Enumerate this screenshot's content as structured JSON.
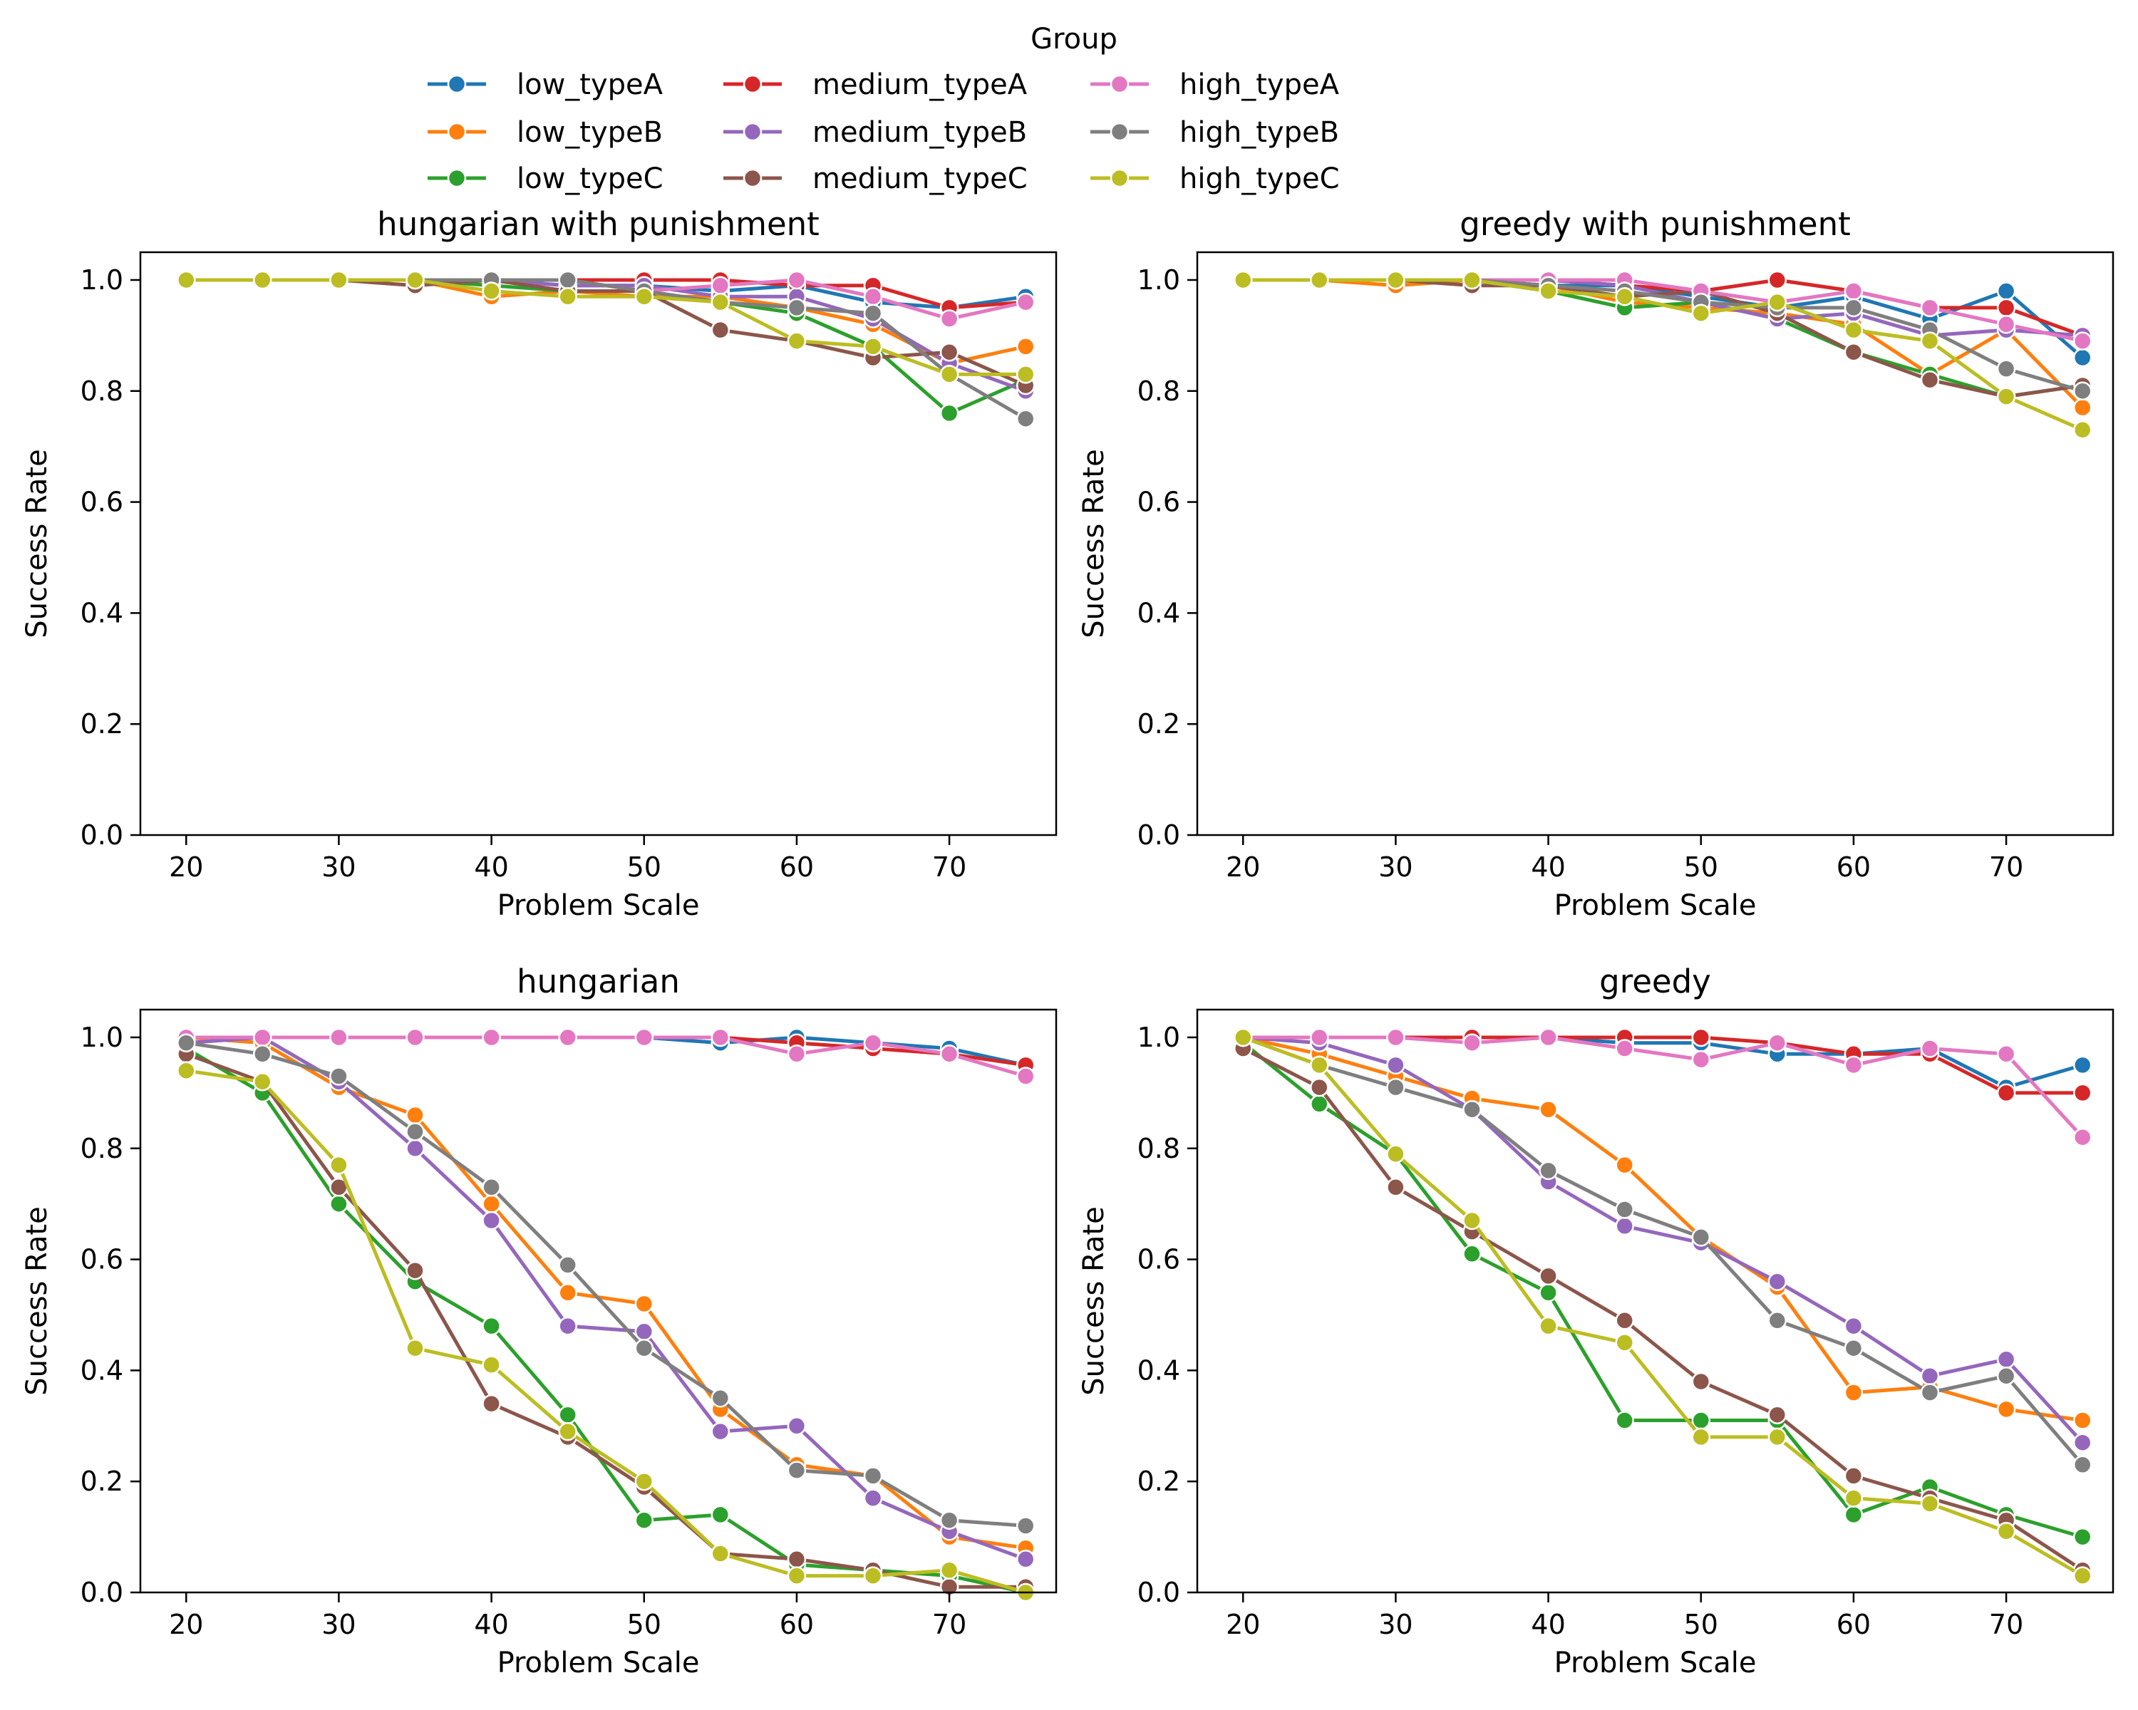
{
  "legend": {
    "title": "Group",
    "entries": [
      {
        "name": "low_typeA",
        "color": "#1f77b4"
      },
      {
        "name": "low_typeB",
        "color": "#ff7f0e"
      },
      {
        "name": "low_typeC",
        "color": "#2ca02c"
      },
      {
        "name": "medium_typeA",
        "color": "#d62728"
      },
      {
        "name": "medium_typeB",
        "color": "#9467bd"
      },
      {
        "name": "medium_typeC",
        "color": "#8c564b"
      },
      {
        "name": "high_typeA",
        "color": "#e377c2"
      },
      {
        "name": "high_typeB",
        "color": "#7f7f7f"
      },
      {
        "name": "high_typeC",
        "color": "#bcbd22"
      }
    ]
  },
  "chart_data": [
    {
      "type": "line",
      "title": "hungarian with punishment",
      "xlabel": "Problem Scale",
      "ylabel": "Success Rate",
      "xlim": [
        17,
        77
      ],
      "ylim": [
        0,
        1.05
      ],
      "xticks": [
        20,
        30,
        40,
        50,
        60,
        70
      ],
      "yticks": [
        "0.0",
        "0.2",
        "0.4",
        "0.6",
        "0.8",
        "1.0"
      ],
      "x": [
        20,
        25,
        30,
        35,
        40,
        45,
        50,
        55,
        60,
        65,
        70,
        75
      ],
      "series": [
        {
          "name": "low_typeA",
          "color": "#1f77b4",
          "values": [
            1.0,
            1.0,
            1.0,
            1.0,
            1.0,
            0.99,
            0.99,
            0.98,
            0.99,
            0.96,
            0.95,
            0.97
          ]
        },
        {
          "name": "low_typeB",
          "color": "#ff7f0e",
          "values": [
            1.0,
            1.0,
            1.0,
            1.0,
            0.97,
            0.98,
            0.97,
            0.97,
            0.95,
            0.92,
            0.85,
            0.88
          ]
        },
        {
          "name": "low_typeC",
          "color": "#2ca02c",
          "values": [
            1.0,
            1.0,
            1.0,
            1.0,
            0.99,
            0.98,
            0.98,
            0.96,
            0.94,
            0.88,
            0.76,
            0.82
          ]
        },
        {
          "name": "medium_typeA",
          "color": "#d62728",
          "values": [
            1.0,
            1.0,
            1.0,
            1.0,
            1.0,
            1.0,
            1.0,
            1.0,
            0.99,
            0.99,
            0.95,
            0.96
          ]
        },
        {
          "name": "medium_typeB",
          "color": "#9467bd",
          "values": [
            1.0,
            1.0,
            1.0,
            1.0,
            1.0,
            0.99,
            0.99,
            0.97,
            0.97,
            0.93,
            0.85,
            0.8
          ]
        },
        {
          "name": "medium_typeC",
          "color": "#8c564b",
          "values": [
            1.0,
            1.0,
            1.0,
            0.99,
            1.0,
            0.98,
            0.98,
            0.91,
            0.89,
            0.86,
            0.87,
            0.81
          ]
        },
        {
          "name": "high_typeA",
          "color": "#e377c2",
          "values": [
            1.0,
            1.0,
            1.0,
            1.0,
            1.0,
            1.0,
            0.98,
            0.99,
            1.0,
            0.97,
            0.93,
            0.96
          ]
        },
        {
          "name": "high_typeB",
          "color": "#7f7f7f",
          "values": [
            1.0,
            1.0,
            1.0,
            1.0,
            1.0,
            1.0,
            0.98,
            0.96,
            0.95,
            0.94,
            0.83,
            0.75
          ]
        },
        {
          "name": "high_typeC",
          "color": "#bcbd22",
          "values": [
            1.0,
            1.0,
            1.0,
            1.0,
            0.98,
            0.97,
            0.97,
            0.96,
            0.89,
            0.88,
            0.83,
            0.83
          ]
        }
      ]
    },
    {
      "type": "line",
      "title": "greedy with punishment",
      "xlabel": "Problem Scale",
      "ylabel": "Success Rate",
      "xlim": [
        17,
        77
      ],
      "ylim": [
        0,
        1.05
      ],
      "xticks": [
        20,
        30,
        40,
        50,
        60,
        70
      ],
      "yticks": [
        "0.0",
        "0.2",
        "0.4",
        "0.6",
        "0.8",
        "1.0"
      ],
      "x": [
        20,
        25,
        30,
        35,
        40,
        45,
        50,
        55,
        60,
        65,
        70,
        75
      ],
      "series": [
        {
          "name": "low_typeA",
          "color": "#1f77b4",
          "values": [
            1.0,
            1.0,
            1.0,
            1.0,
            0.99,
            0.99,
            0.97,
            0.95,
            0.97,
            0.93,
            0.98,
            0.86
          ]
        },
        {
          "name": "low_typeB",
          "color": "#ff7f0e",
          "values": [
            1.0,
            1.0,
            0.99,
            1.0,
            0.99,
            0.96,
            0.95,
            0.94,
            0.92,
            0.83,
            0.91,
            0.77
          ]
        },
        {
          "name": "low_typeC",
          "color": "#2ca02c",
          "values": [
            1.0,
            1.0,
            1.0,
            1.0,
            0.98,
            0.95,
            0.96,
            0.93,
            0.87,
            0.83,
            0.79,
            0.81
          ]
        },
        {
          "name": "medium_typeA",
          "color": "#d62728",
          "values": [
            1.0,
            1.0,
            1.0,
            1.0,
            1.0,
            0.99,
            0.98,
            1.0,
            0.98,
            0.95,
            0.95,
            0.9
          ]
        },
        {
          "name": "medium_typeB",
          "color": "#9467bd",
          "values": [
            1.0,
            1.0,
            1.0,
            1.0,
            1.0,
            0.99,
            0.96,
            0.93,
            0.94,
            0.9,
            0.91,
            0.9
          ]
        },
        {
          "name": "medium_typeC",
          "color": "#8c564b",
          "values": [
            1.0,
            1.0,
            1.0,
            0.99,
            0.99,
            0.97,
            0.98,
            0.94,
            0.87,
            0.82,
            0.79,
            0.81
          ]
        },
        {
          "name": "high_typeA",
          "color": "#e377c2",
          "values": [
            1.0,
            1.0,
            1.0,
            1.0,
            1.0,
            1.0,
            0.98,
            0.96,
            0.98,
            0.95,
            0.92,
            0.89
          ]
        },
        {
          "name": "high_typeB",
          "color": "#7f7f7f",
          "values": [
            1.0,
            1.0,
            1.0,
            1.0,
            0.99,
            0.98,
            0.96,
            0.95,
            0.95,
            0.91,
            0.84,
            0.8
          ]
        },
        {
          "name": "high_typeC",
          "color": "#bcbd22",
          "values": [
            1.0,
            1.0,
            1.0,
            1.0,
            0.98,
            0.97,
            0.94,
            0.96,
            0.91,
            0.89,
            0.79,
            0.73
          ]
        }
      ]
    },
    {
      "type": "line",
      "title": "hungarian",
      "xlabel": "Problem Scale",
      "ylabel": "Success Rate",
      "xlim": [
        17,
        77
      ],
      "ylim": [
        0,
        1.05
      ],
      "xticks": [
        20,
        30,
        40,
        50,
        60,
        70
      ],
      "yticks": [
        "0.0",
        "0.2",
        "0.4",
        "0.6",
        "0.8",
        "1.0"
      ],
      "x": [
        20,
        25,
        30,
        35,
        40,
        45,
        50,
        55,
        60,
        65,
        70,
        75
      ],
      "series": [
        {
          "name": "low_typeA",
          "color": "#1f77b4",
          "values": [
            1.0,
            1.0,
            1.0,
            1.0,
            1.0,
            1.0,
            1.0,
            0.99,
            1.0,
            0.99,
            0.98,
            0.95
          ]
        },
        {
          "name": "low_typeB",
          "color": "#ff7f0e",
          "values": [
            1.0,
            0.99,
            0.91,
            0.86,
            0.7,
            0.54,
            0.52,
            0.33,
            0.23,
            0.21,
            0.1,
            0.08
          ]
        },
        {
          "name": "low_typeC",
          "color": "#2ca02c",
          "values": [
            0.98,
            0.9,
            0.7,
            0.56,
            0.48,
            0.32,
            0.13,
            0.14,
            0.05,
            0.04,
            0.03,
            0.0
          ]
        },
        {
          "name": "medium_typeA",
          "color": "#d62728",
          "values": [
            1.0,
            1.0,
            1.0,
            1.0,
            1.0,
            1.0,
            1.0,
            1.0,
            0.99,
            0.98,
            0.97,
            0.95
          ]
        },
        {
          "name": "medium_typeB",
          "color": "#9467bd",
          "values": [
            0.99,
            1.0,
            0.92,
            0.8,
            0.67,
            0.48,
            0.47,
            0.29,
            0.3,
            0.17,
            0.11,
            0.06
          ]
        },
        {
          "name": "medium_typeC",
          "color": "#8c564b",
          "values": [
            0.97,
            0.92,
            0.73,
            0.58,
            0.34,
            0.28,
            0.19,
            0.07,
            0.06,
            0.04,
            0.01,
            0.01
          ]
        },
        {
          "name": "high_typeA",
          "color": "#e377c2",
          "values": [
            1.0,
            1.0,
            1.0,
            1.0,
            1.0,
            1.0,
            1.0,
            1.0,
            0.97,
            0.99,
            0.97,
            0.93
          ]
        },
        {
          "name": "high_typeB",
          "color": "#7f7f7f",
          "values": [
            0.99,
            0.97,
            0.93,
            0.83,
            0.73,
            0.59,
            0.44,
            0.35,
            0.22,
            0.21,
            0.13,
            0.12
          ]
        },
        {
          "name": "high_typeC",
          "color": "#bcbd22",
          "values": [
            0.94,
            0.92,
            0.77,
            0.44,
            0.41,
            0.29,
            0.2,
            0.07,
            0.03,
            0.03,
            0.04,
            0.0
          ]
        }
      ]
    },
    {
      "type": "line",
      "title": "greedy",
      "xlabel": "Problem Scale",
      "ylabel": "Success Rate",
      "xlim": [
        17,
        77
      ],
      "ylim": [
        0,
        1.05
      ],
      "xticks": [
        20,
        30,
        40,
        50,
        60,
        70
      ],
      "yticks": [
        "0.0",
        "0.2",
        "0.4",
        "0.6",
        "0.8",
        "1.0"
      ],
      "x": [
        20,
        25,
        30,
        35,
        40,
        45,
        50,
        55,
        60,
        65,
        70,
        75
      ],
      "series": [
        {
          "name": "low_typeA",
          "color": "#1f77b4",
          "values": [
            1.0,
            1.0,
            1.0,
            1.0,
            1.0,
            0.99,
            0.99,
            0.97,
            0.97,
            0.98,
            0.91,
            0.95
          ]
        },
        {
          "name": "low_typeB",
          "color": "#ff7f0e",
          "values": [
            1.0,
            0.97,
            0.93,
            0.89,
            0.87,
            0.77,
            0.64,
            0.55,
            0.36,
            0.37,
            0.33,
            0.31
          ]
        },
        {
          "name": "low_typeC",
          "color": "#2ca02c",
          "values": [
            0.99,
            0.88,
            0.79,
            0.61,
            0.54,
            0.31,
            0.31,
            0.31,
            0.14,
            0.19,
            0.14,
            0.1
          ]
        },
        {
          "name": "medium_typeA",
          "color": "#d62728",
          "values": [
            1.0,
            1.0,
            1.0,
            1.0,
            1.0,
            1.0,
            1.0,
            0.99,
            0.97,
            0.97,
            0.9,
            0.9
          ]
        },
        {
          "name": "medium_typeB",
          "color": "#9467bd",
          "values": [
            1.0,
            0.99,
            0.95,
            0.87,
            0.74,
            0.66,
            0.63,
            0.56,
            0.48,
            0.39,
            0.42,
            0.27
          ]
        },
        {
          "name": "medium_typeC",
          "color": "#8c564b",
          "values": [
            0.98,
            0.91,
            0.73,
            0.65,
            0.57,
            0.49,
            0.38,
            0.32,
            0.21,
            0.17,
            0.13,
            0.04
          ]
        },
        {
          "name": "high_typeA",
          "color": "#e377c2",
          "values": [
            1.0,
            1.0,
            1.0,
            0.99,
            1.0,
            0.98,
            0.96,
            0.99,
            0.95,
            0.98,
            0.97,
            0.82
          ]
        },
        {
          "name": "high_typeB",
          "color": "#7f7f7f",
          "values": [
            1.0,
            0.95,
            0.91,
            0.87,
            0.76,
            0.69,
            0.64,
            0.49,
            0.44,
            0.36,
            0.39,
            0.23
          ]
        },
        {
          "name": "high_typeC",
          "color": "#bcbd22",
          "values": [
            1.0,
            0.95,
            0.79,
            0.67,
            0.48,
            0.45,
            0.28,
            0.28,
            0.17,
            0.16,
            0.11,
            0.03
          ]
        }
      ]
    }
  ]
}
